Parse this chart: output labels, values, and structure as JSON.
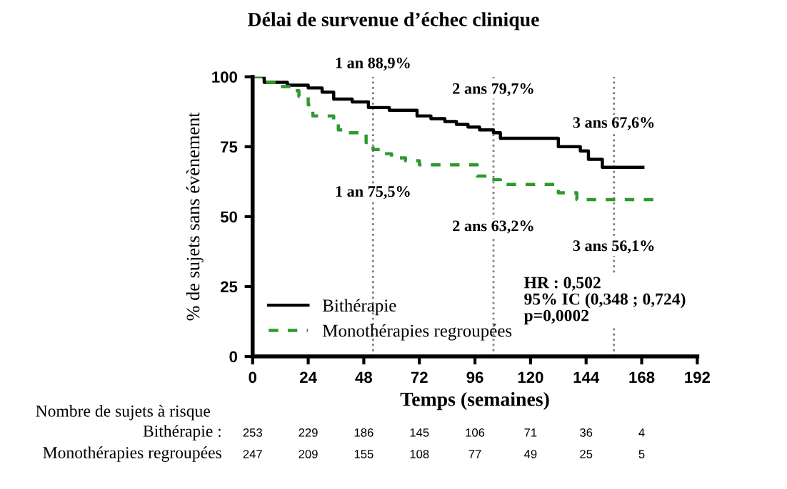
{
  "chart_data": {
    "type": "step",
    "title": "Délai de survenue d’échec clinique",
    "xlabel": "Temps (semaines)",
    "ylabel": "% de sujets sans évènement",
    "series": [
      {
        "name": "Bithérapie",
        "color": "#000000",
        "line_style": "solid",
        "x": [
          0,
          5,
          15,
          24,
          30,
          35,
          43,
          50,
          59,
          71,
          77,
          83,
          88,
          93,
          98,
          104,
          107,
          132,
          141.5,
          145,
          151,
          168.5
        ],
        "values": [
          100,
          98,
          97,
          96,
          94.5,
          92,
          91,
          89,
          88,
          86,
          85,
          84,
          83,
          82,
          81,
          80,
          78,
          75,
          73.5,
          70.5,
          67.6,
          67.6
        ]
      },
      {
        "name": "Monothérapies regroupées",
        "color": "#2e9a2e",
        "line_style": "dashed",
        "x": [
          0,
          5,
          10,
          17,
          20,
          24,
          26,
          35,
          37,
          40,
          49,
          52,
          56,
          60,
          66,
          72,
          95,
          97,
          102,
          107,
          132,
          140,
          175
        ],
        "values": [
          100,
          98,
          96.5,
          95,
          93,
          90,
          86,
          84.5,
          81,
          80,
          76.5,
          74,
          72.5,
          71,
          70,
          68.5,
          68.5,
          64.5,
          63.2,
          61.5,
          58.5,
          56.1,
          56.1
        ]
      }
    ],
    "xlim": [
      0,
      192
    ],
    "xticks": [
      0,
      24,
      48,
      72,
      96,
      120,
      144,
      168,
      192
    ],
    "ylim": [
      0,
      100
    ],
    "yticks": [
      0,
      25,
      50,
      75,
      100
    ],
    "ref_lines": [
      {
        "axis": "x",
        "value": 52,
        "color": "#808080",
        "line_style": "dotted"
      },
      {
        "axis": "x",
        "value": 104,
        "color": "#808080",
        "line_style": "dotted"
      },
      {
        "axis": "x",
        "value": 156,
        "color": "#808080",
        "line_style": "dotted"
      }
    ],
    "legend": "bottom left",
    "grid": false,
    "annotations": [
      "Nombre de sujets à risque",
      "Bithérapie :",
      "253",
      "229",
      "186",
      "145",
      "106",
      "71",
      "36",
      "4",
      "Monothérapies regroupées",
      "247",
      "209",
      "155",
      "108",
      "77",
      "49",
      "25",
      "5",
      {
        "text": "1 an 88,9%",
        "x": 52,
        "y": 88.9
      },
      {
        "text": "1 an 75,5%",
        "x": 52,
        "y": 75.5
      },
      {
        "text": "2 ans 79,7%",
        "x": 104,
        "y": 79.7
      },
      {
        "text": "2 ans 63,2%",
        "x": 104,
        "y": 63.2
      },
      {
        "text": "3 ans 67,6%",
        "x": 156,
        "y": 67.6
      },
      {
        "text": "3 ans 56,1%",
        "x": 156,
        "y": 56.1
      },
      "HR : 0,502\n95% IC (0,348 ; 0,724)\np=0,0002"
    ]
  }
}
